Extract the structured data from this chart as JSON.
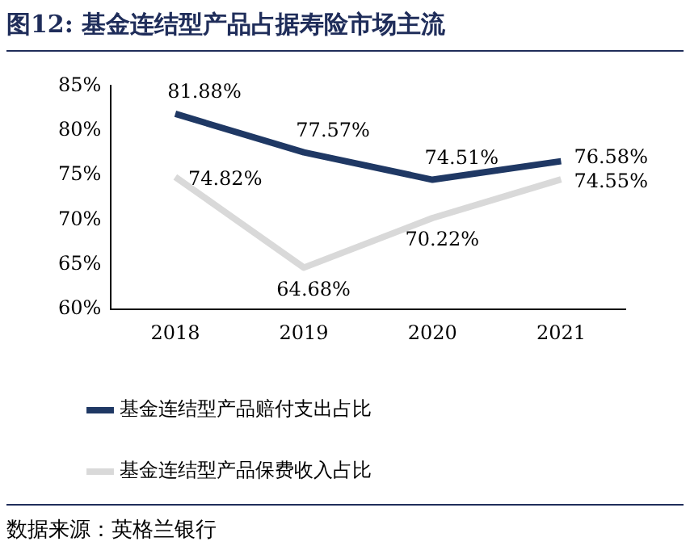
{
  "chart_data": {
    "type": "line",
    "title": "图12:  基金连结型产品占据寿险市场主流",
    "categories": [
      "2018",
      "2019",
      "2020",
      "2021"
    ],
    "series": [
      {
        "name": "基金连结型产品赔付支出占比",
        "color": "#1f3864",
        "values": [
          81.88,
          77.57,
          74.51,
          76.58
        ],
        "value_labels": [
          "81.88%",
          "77.57%",
          "74.51%",
          "76.58%"
        ]
      },
      {
        "name": "基金连结型产品保费收入占比",
        "color": "#d9d9d9",
        "values": [
          74.82,
          64.68,
          70.22,
          74.55
        ],
        "value_labels": [
          "74.82%",
          "64.68%",
          "70.22%",
          "74.55%"
        ]
      }
    ],
    "ylim": [
      60,
      85
    ],
    "yticks": [
      {
        "value": 60,
        "label": "60%"
      },
      {
        "value": 65,
        "label": "65%"
      },
      {
        "value": 70,
        "label": "70%"
      },
      {
        "value": 75,
        "label": "75%"
      },
      {
        "value": 80,
        "label": "80%"
      },
      {
        "value": 85,
        "label": "85%"
      }
    ],
    "grid": false,
    "legend": "bottom",
    "marker": "none",
    "line_style": "solid",
    "annotations": [
      "数据来源：英格兰银行"
    ]
  }
}
